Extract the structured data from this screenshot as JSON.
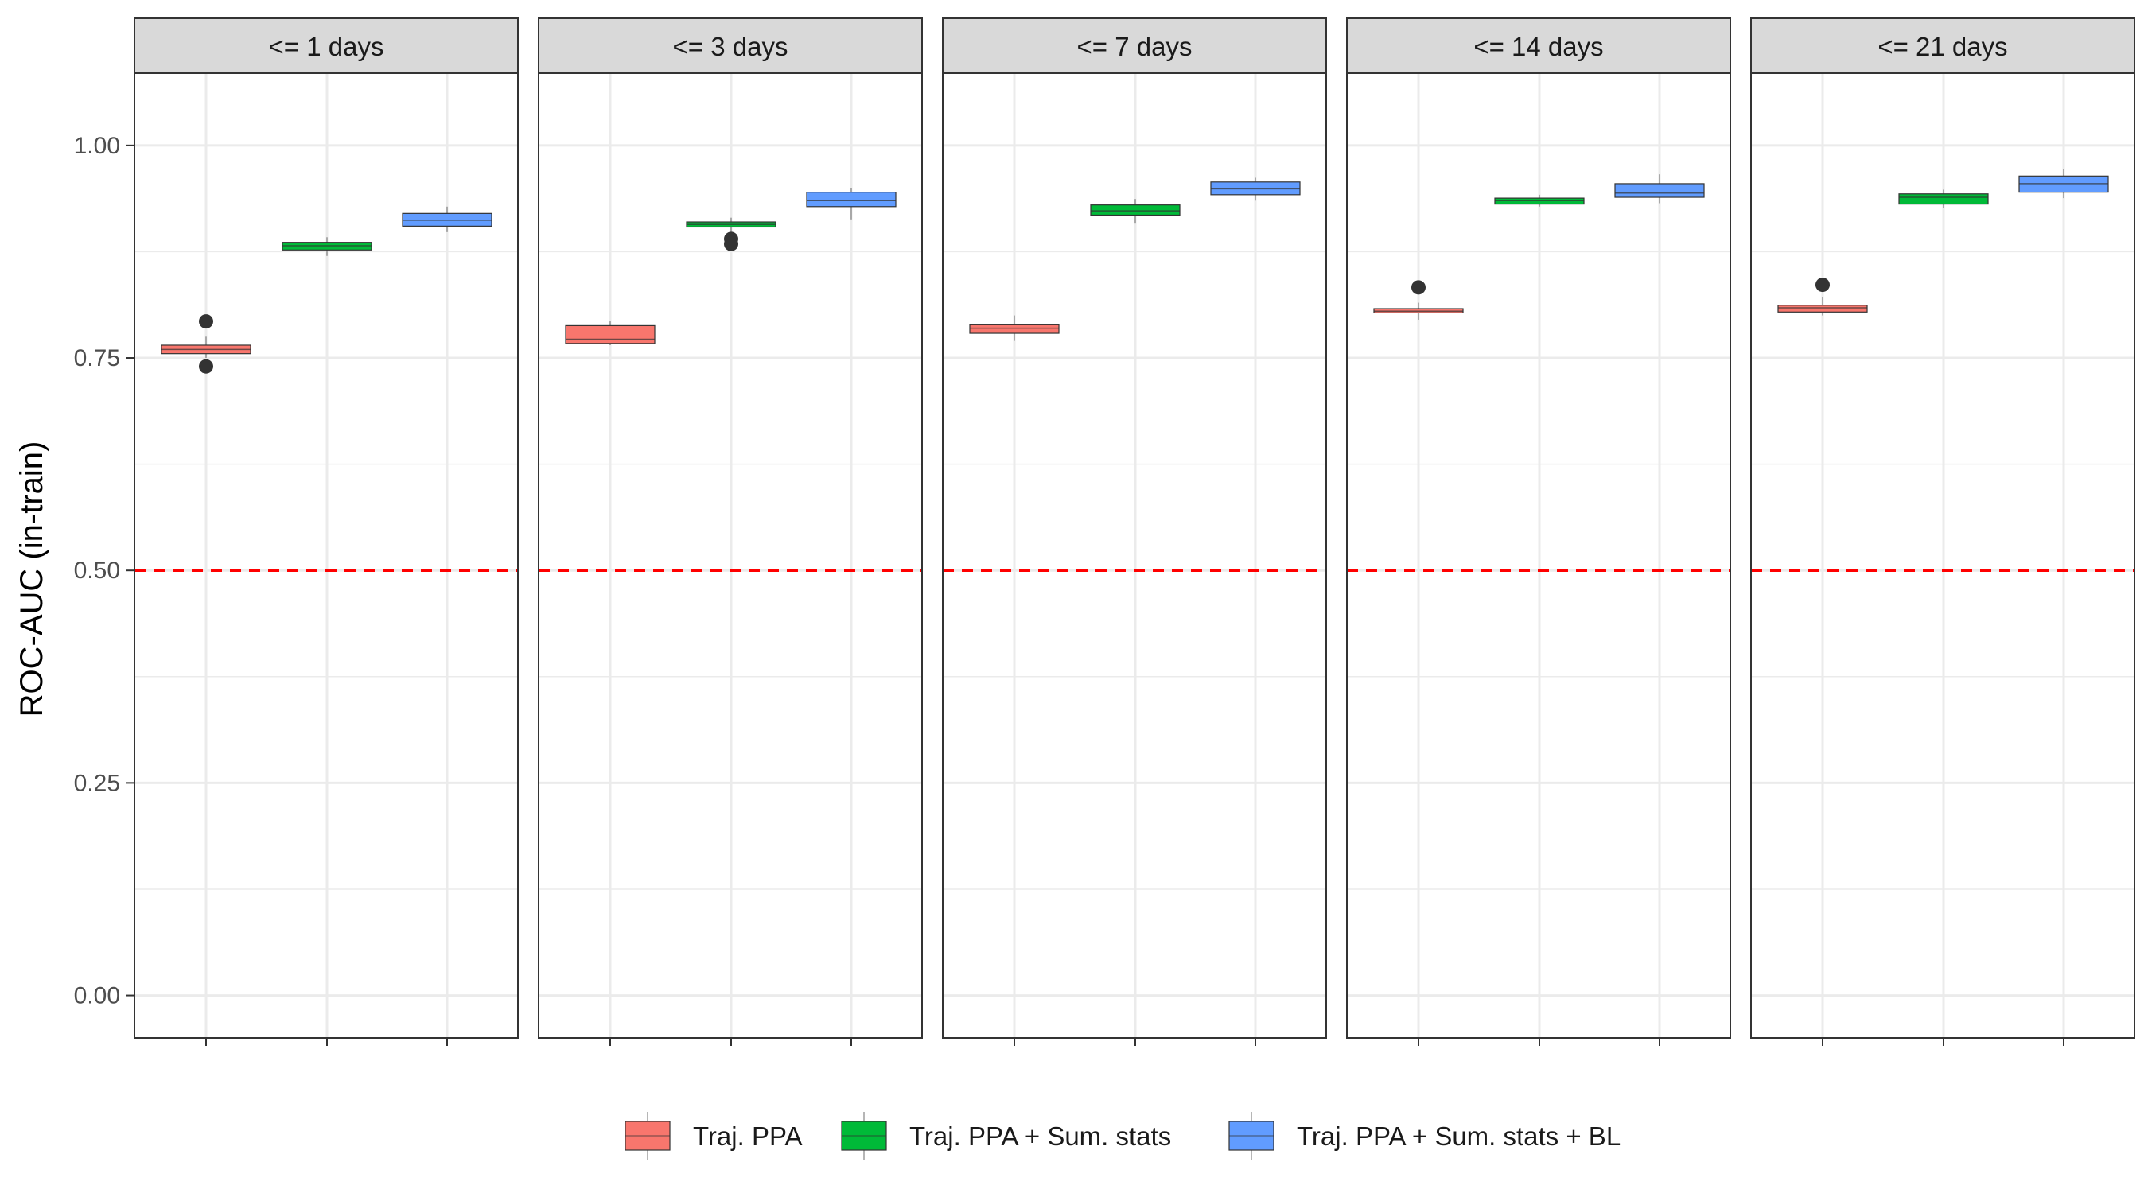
{
  "chart_data": {
    "type": "box",
    "facets": [
      "<= 1 days",
      "<= 3 days",
      "<= 7 days",
      "<= 14 days",
      "<= 21 days"
    ],
    "ylabel": "ROC-AUC (in-train)",
    "xlabel": "",
    "ylim": [
      -0.05,
      1.085
    ],
    "yticks": [
      0.0,
      0.25,
      0.5,
      0.75,
      1.0
    ],
    "ytick_labels": [
      "0.00",
      "0.25",
      "0.50",
      "0.75",
      "1.00"
    ],
    "reference_line": {
      "y": 0.5,
      "color": "#ff0000",
      "style": "dashed"
    },
    "legend_position": "bottom",
    "grid": true,
    "series": [
      {
        "name": "Traj. PPA",
        "color": "#F8766D",
        "boxes": [
          {
            "facet": "<= 1 days",
            "min": 0.75,
            "q1": 0.755,
            "median": 0.76,
            "q3": 0.765,
            "max": 0.775,
            "outliers": [
              0.793,
              0.74
            ]
          },
          {
            "facet": "<= 3 days",
            "min": 0.765,
            "q1": 0.767,
            "median": 0.772,
            "q3": 0.788,
            "max": 0.793,
            "outliers": []
          },
          {
            "facet": "<= 7 days",
            "min": 0.77,
            "q1": 0.779,
            "median": 0.785,
            "q3": 0.789,
            "max": 0.8,
            "outliers": []
          },
          {
            "facet": "<= 14 days",
            "min": 0.795,
            "q1": 0.803,
            "median": 0.805,
            "q3": 0.808,
            "max": 0.815,
            "outliers": [
              0.833
            ]
          },
          {
            "facet": "<= 21 days",
            "min": 0.8,
            "q1": 0.804,
            "median": 0.809,
            "q3": 0.812,
            "max": 0.822,
            "outliers": [
              0.836
            ]
          }
        ]
      },
      {
        "name": "Traj. PPA + Sum. stats",
        "color": "#00BA38",
        "boxes": [
          {
            "facet": "<= 1 days",
            "min": 0.87,
            "q1": 0.877,
            "median": 0.882,
            "q3": 0.886,
            "max": 0.892,
            "outliers": []
          },
          {
            "facet": "<= 3 days",
            "min": 0.898,
            "q1": 0.904,
            "median": 0.907,
            "q3": 0.91,
            "max": 0.915,
            "outliers": [
              0.89,
              0.884
            ]
          },
          {
            "facet": "<= 7 days",
            "min": 0.908,
            "q1": 0.918,
            "median": 0.923,
            "q3": 0.93,
            "max": 0.937,
            "outliers": []
          },
          {
            "facet": "<= 14 days",
            "min": 0.928,
            "q1": 0.931,
            "median": 0.935,
            "q3": 0.938,
            "max": 0.942,
            "outliers": []
          },
          {
            "facet": "<= 21 days",
            "min": 0.926,
            "q1": 0.931,
            "median": 0.939,
            "q3": 0.943,
            "max": 0.948,
            "outliers": []
          }
        ]
      },
      {
        "name": "Traj. PPA + Sum. stats + BL",
        "color": "#619CFF",
        "boxes": [
          {
            "facet": "<= 1 days",
            "min": 0.898,
            "q1": 0.905,
            "median": 0.912,
            "q3": 0.92,
            "max": 0.928,
            "outliers": []
          },
          {
            "facet": "<= 3 days",
            "min": 0.913,
            "q1": 0.928,
            "median": 0.935,
            "q3": 0.945,
            "max": 0.95,
            "outliers": []
          },
          {
            "facet": "<= 7 days",
            "min": 0.935,
            "q1": 0.942,
            "median": 0.949,
            "q3": 0.957,
            "max": 0.962,
            "outliers": []
          },
          {
            "facet": "<= 14 days",
            "min": 0.932,
            "q1": 0.939,
            "median": 0.944,
            "q3": 0.955,
            "max": 0.966,
            "outliers": []
          },
          {
            "facet": "<= 21 days",
            "min": 0.938,
            "q1": 0.945,
            "median": 0.955,
            "q3": 0.964,
            "max": 0.972,
            "outliers": []
          }
        ]
      }
    ]
  }
}
